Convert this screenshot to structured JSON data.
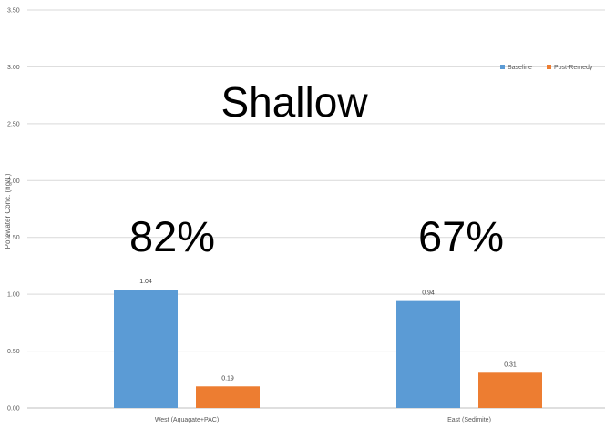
{
  "chart_data": {
    "type": "bar",
    "categories": [
      "West (Aquagate+PAC)",
      "East (Sedimite)"
    ],
    "series": [
      {
        "name": "Baseline",
        "values": [
          1.04,
          0.94
        ],
        "color": "#5B9BD5"
      },
      {
        "name": "Post-Remedy",
        "values": [
          0.19,
          0.31
        ],
        "color": "#ED7D31"
      }
    ],
    "data_labels": [
      [
        "1.04",
        "0.94"
      ],
      [
        "0.19",
        "0.31"
      ]
    ],
    "ylabel": "Porewater Conc. (ng/L)",
    "xlabel": "",
    "ylim": [
      0,
      3.5
    ],
    "y_ticks": [
      "0.00",
      "0.50",
      "1.00",
      "1.50",
      "2.00",
      "2.50",
      "3.00",
      "3.50"
    ],
    "grid": true,
    "legend_position": "top-right",
    "annotations": {
      "title_overlay": "Shallow",
      "percent_left": "82%",
      "percent_right": "67%"
    }
  }
}
